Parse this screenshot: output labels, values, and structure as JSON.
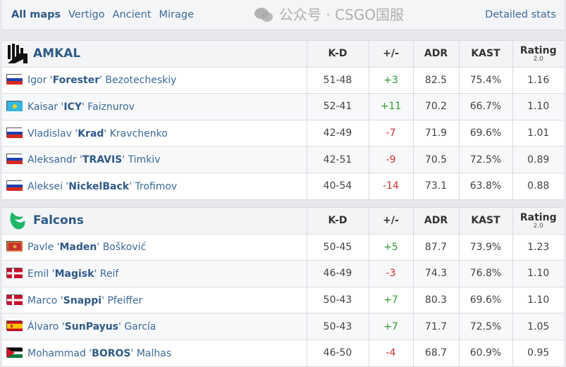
{
  "nav": {
    "tabs": [
      "All maps",
      "Vertigo",
      "Ancient",
      "Mirage"
    ],
    "active": "All maps",
    "detailed": "Detailed stats"
  },
  "columns": {
    "kd": "K-D",
    "pm": "+/-",
    "adr": "ADR",
    "kast": "KAST",
    "rating": "Rating",
    "rating_sub": "2.0"
  },
  "teams": [
    {
      "name": "AMKAL",
      "logo": "amkal-logo",
      "players": [
        {
          "flag": "ru",
          "first": "Igor",
          "nick": "Forester",
          "last": "Bezotecheskiy",
          "kd": "51-48",
          "pm": "+3",
          "adr": "82.5",
          "kast": "75.4%",
          "rating": "1.16"
        },
        {
          "flag": "kz",
          "first": "Kaisar",
          "nick": "ICY",
          "last": "Faiznurov",
          "kd": "52-41",
          "pm": "+11",
          "adr": "70.2",
          "kast": "66.7%",
          "rating": "1.10"
        },
        {
          "flag": "ru",
          "first": "Vladislav",
          "nick": "Krad",
          "last": "Kravchenko",
          "kd": "42-49",
          "pm": "-7",
          "adr": "71.9",
          "kast": "69.6%",
          "rating": "1.01"
        },
        {
          "flag": "ru",
          "first": "Aleksandr",
          "nick": "TRAVIS",
          "last": "Timkiv",
          "kd": "42-51",
          "pm": "-9",
          "adr": "70.5",
          "kast": "72.5%",
          "rating": "0.89"
        },
        {
          "flag": "ru",
          "first": "Aleksei",
          "nick": "NickelBack",
          "last": "Trofimov",
          "kd": "40-54",
          "pm": "-14",
          "adr": "73.1",
          "kast": "63.8%",
          "rating": "0.88"
        }
      ]
    },
    {
      "name": "Falcons",
      "logo": "falcons-logo",
      "players": [
        {
          "flag": "me",
          "first": "Pavle",
          "nick": "Maden",
          "last": "Bošković",
          "kd": "50-45",
          "pm": "+5",
          "adr": "87.7",
          "kast": "73.9%",
          "rating": "1.23"
        },
        {
          "flag": "dk",
          "first": "Emil",
          "nick": "Magisk",
          "last": "Reif",
          "kd": "46-49",
          "pm": "-3",
          "adr": "74.3",
          "kast": "76.8%",
          "rating": "1.10"
        },
        {
          "flag": "dk",
          "first": "Marco",
          "nick": "Snappi",
          "last": "Pfeiffer",
          "kd": "50-43",
          "pm": "+7",
          "adr": "80.3",
          "kast": "69.6%",
          "rating": "1.10"
        },
        {
          "flag": "es",
          "first": "Álvaro",
          "nick": "SunPayus",
          "last": "García",
          "kd": "50-43",
          "pm": "+7",
          "adr": "71.7",
          "kast": "72.5%",
          "rating": "1.05"
        },
        {
          "flag": "jo",
          "first": "Mohammad",
          "nick": "BOROS",
          "last": "Malhas",
          "kd": "46-50",
          "pm": "-4",
          "adr": "68.7",
          "kast": "60.9%",
          "rating": "0.95"
        }
      ]
    }
  ],
  "colors": {
    "positive": "#2f9a2f",
    "negative": "#d03030",
    "link": "#3c6a98",
    "falcons_green": "#1fb566"
  },
  "watermark": "公众号 · CSGO国服"
}
